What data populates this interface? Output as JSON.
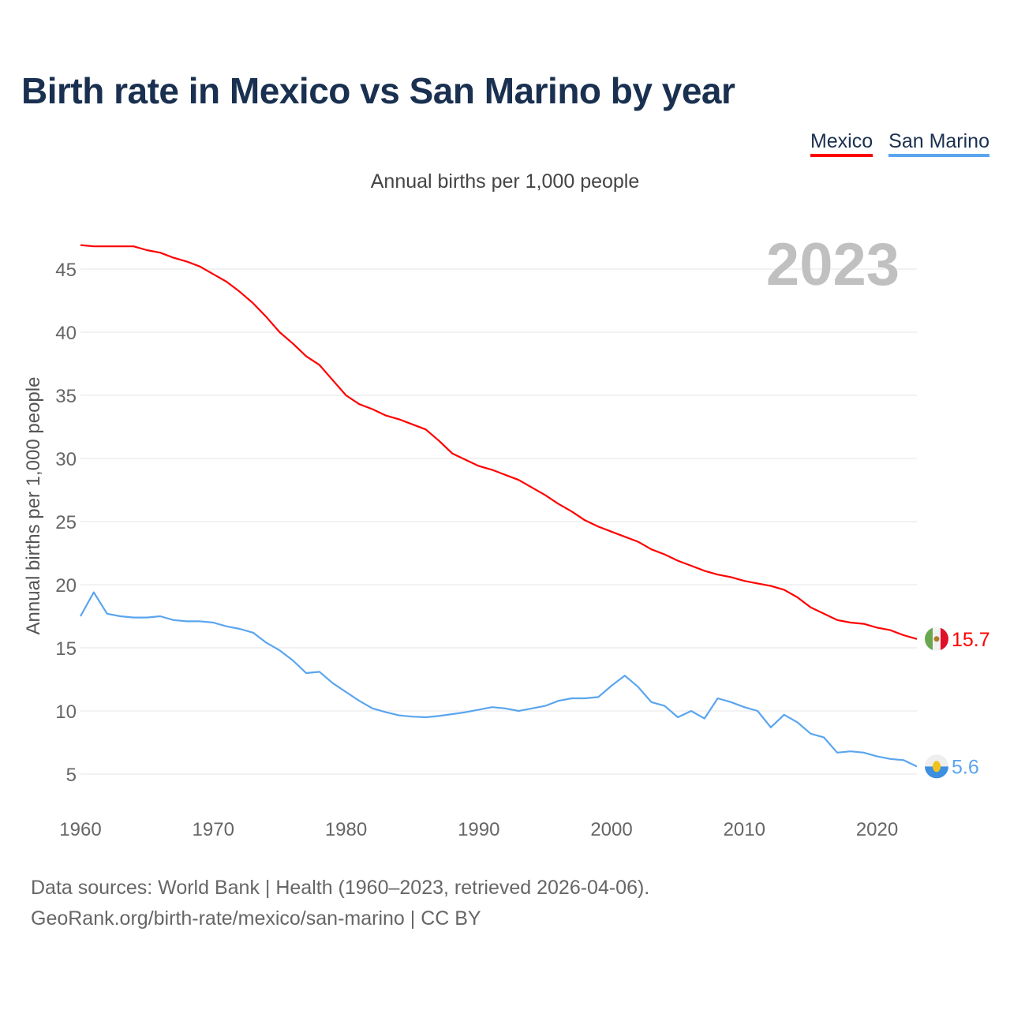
{
  "title": "Birth rate in Mexico vs San Marino by year",
  "subtitle": "Annual births per 1,000 people",
  "year_label": "2023",
  "footer": {
    "line1": "Data sources: World Bank | Health (1960–2023, retrieved 2026-04-06).",
    "line2": "GeoRank.org/birth-rate/mexico/san-marino | CC BY"
  },
  "chart_data": {
    "type": "line",
    "title": "Birth rate in Mexico vs San Marino by year",
    "xlabel": "",
    "ylabel": "Annual births per 1,000 people",
    "xlim": [
      1960,
      2023
    ],
    "ylim": [
      2,
      48
    ],
    "grid": true,
    "legend_position": "top-right",
    "x_ticks": [
      1960,
      1970,
      1980,
      1990,
      2000,
      2010,
      2020
    ],
    "y_ticks": [
      5,
      10,
      15,
      20,
      25,
      30,
      35,
      40,
      45
    ],
    "x": [
      1960,
      1961,
      1962,
      1963,
      1964,
      1965,
      1966,
      1967,
      1968,
      1969,
      1970,
      1971,
      1972,
      1973,
      1974,
      1975,
      1976,
      1977,
      1978,
      1979,
      1980,
      1981,
      1982,
      1983,
      1984,
      1985,
      1986,
      1987,
      1988,
      1989,
      1990,
      1991,
      1992,
      1993,
      1994,
      1995,
      1996,
      1997,
      1998,
      1999,
      2000,
      2001,
      2002,
      2003,
      2004,
      2005,
      2006,
      2007,
      2008,
      2009,
      2010,
      2011,
      2012,
      2013,
      2014,
      2015,
      2016,
      2017,
      2018,
      2019,
      2020,
      2021,
      2022,
      2023
    ],
    "series": [
      {
        "name": "Mexico",
        "color": "#ff0000",
        "end_label": "15.7",
        "values": [
          46.9,
          46.8,
          46.8,
          46.8,
          46.8,
          46.5,
          46.3,
          45.9,
          45.6,
          45.2,
          44.6,
          44.0,
          43.2,
          42.3,
          41.2,
          40.0,
          39.1,
          38.1,
          37.4,
          36.2,
          35.0,
          34.3,
          33.9,
          33.4,
          33.1,
          32.7,
          32.3,
          31.4,
          30.4,
          29.9,
          29.4,
          29.1,
          28.7,
          28.3,
          27.7,
          27.1,
          26.4,
          25.8,
          25.1,
          24.6,
          24.2,
          23.8,
          23.4,
          22.8,
          22.4,
          21.9,
          21.5,
          21.1,
          20.8,
          20.6,
          20.3,
          20.1,
          19.9,
          19.6,
          19.0,
          18.2,
          17.7,
          17.2,
          17.0,
          16.9,
          16.6,
          16.4,
          16.0,
          15.7
        ]
      },
      {
        "name": "San Marino",
        "color": "#5aa5ef",
        "end_label": "5.6",
        "values": [
          17.5,
          19.4,
          17.7,
          17.5,
          17.4,
          17.4,
          17.5,
          17.2,
          17.1,
          17.1,
          17.0,
          16.7,
          16.5,
          16.2,
          15.4,
          14.8,
          14.0,
          13.0,
          13.1,
          12.2,
          11.5,
          10.8,
          10.2,
          9.9,
          9.65,
          9.55,
          9.5,
          9.6,
          9.75,
          9.9,
          10.1,
          10.3,
          10.2,
          10.0,
          10.2,
          10.4,
          10.8,
          11.0,
          11.0,
          11.1,
          12.0,
          12.8,
          11.9,
          10.7,
          10.4,
          9.5,
          10.0,
          9.4,
          11.0,
          10.7,
          10.3,
          10.0,
          8.7,
          9.7,
          9.1,
          8.2,
          7.9,
          6.7,
          6.8,
          6.7,
          6.4,
          6.2,
          6.1,
          5.6
        ]
      }
    ]
  }
}
